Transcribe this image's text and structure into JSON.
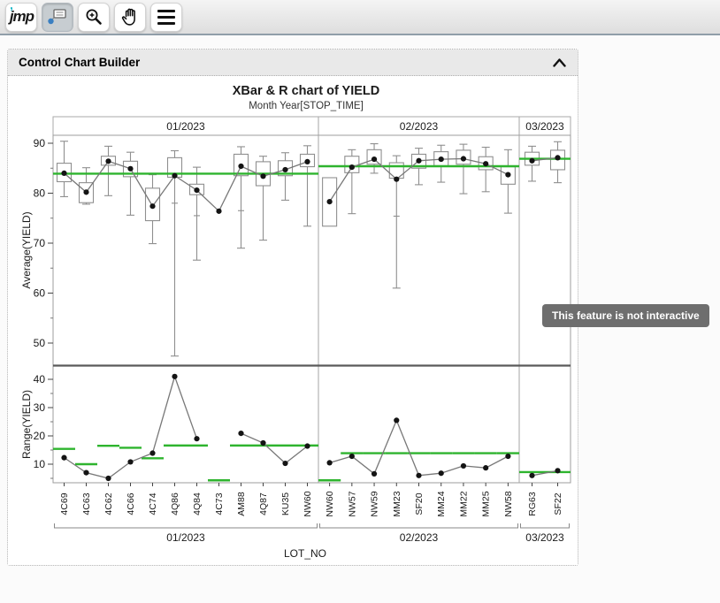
{
  "toolbar": {
    "logo_text": "jmp",
    "buttons": [
      {
        "name": "jmp-logo-button",
        "icon": "jmp-logo",
        "pressed": false
      },
      {
        "name": "annotation-tool-button",
        "icon": "callout-icon",
        "pressed": true
      },
      {
        "name": "zoom-tool-button",
        "icon": "magnifier-icon",
        "pressed": false
      },
      {
        "name": "grab-tool-button",
        "icon": "hand-icon",
        "pressed": false
      },
      {
        "name": "menu-button",
        "icon": "hamburger-icon",
        "pressed": false
      }
    ]
  },
  "panel": {
    "title": "Control Chart Builder",
    "collapse_icon": "chevron-up-icon"
  },
  "tooltip": {
    "text": "This feature is not interactive"
  },
  "chart_data": {
    "type": "control-chart-xbar-r",
    "title": "XBar & R chart of YIELD",
    "subtitle": "Month Year[STOP_TIME]",
    "xlabel": "LOT_NO",
    "top_axis": {
      "ylabel": "Average(YIELD)",
      "yticks": [
        50,
        60,
        70,
        80,
        90
      ],
      "minor_ticks": [
        55,
        65,
        75,
        85
      ],
      "ylim": [
        45.6,
        91.6
      ]
    },
    "bottom_axis": {
      "ylabel": "Range(YIELD)",
      "yticks": [
        10,
        20,
        30,
        40
      ],
      "minor_ticks": [
        5,
        15,
        25,
        35
      ],
      "ylim": [
        3.4,
        44.7
      ]
    },
    "colors": {
      "center_line": "#2eb42e",
      "box_stroke": "#8f8f8f",
      "series_line": "#787878",
      "point": "#141414",
      "divider": "#5a5a5a",
      "frame": "#9c9c9c"
    },
    "groups": [
      {
        "label": "01/2023",
        "lots": [
          "4C69",
          "4C63",
          "4C62",
          "4C66",
          "4C74",
          "4Q86",
          "4Q84",
          "4C73",
          "AM88",
          "4Q87",
          "KU35",
          "NW60"
        ],
        "xbar": {
          "means": [
            84.0,
            80.2,
            86.4,
            84.9,
            77.4,
            83.5,
            80.6,
            76.4,
            85.4,
            83.4,
            84.7,
            86.3
          ],
          "box_q1": [
            82.3,
            78.1,
            85.6,
            83.3,
            74.5,
            83.2,
            79.7,
            null,
            83.5,
            81.5,
            83.5,
            85.3
          ],
          "box_q3": [
            86.0,
            82.1,
            87.4,
            86.4,
            81.0,
            87.1,
            81.8,
            null,
            87.8,
            86.3,
            86.5,
            87.8
          ],
          "whisker_lo": [
            79.3,
            77.8,
            79.5,
            75.6,
            69.9,
            47.4,
            66.6,
            null,
            69.0,
            70.6,
            78.6,
            73.4
          ],
          "whisker_hi": [
            90.4,
            85.1,
            89.4,
            88.2,
            83.7,
            88.5,
            85.2,
            null,
            89.3,
            87.4,
            88.1,
            89.5
          ],
          "mid_ticks": [
            null,
            null,
            null,
            null,
            null,
            78.0,
            75.5,
            null,
            76.5,
            null,
            null,
            null
          ],
          "center_line": 83.9
        },
        "range": {
          "values": [
            12.3,
            7.0,
            5.0,
            10.8,
            13.9,
            41.0,
            19.0,
            null,
            20.9,
            17.5,
            10.3,
            16.4
          ],
          "center_segments": [
            15.4,
            10.0,
            16.5,
            15.8,
            12.1,
            16.6,
            16.6,
            4.3,
            16.6,
            16.6,
            16.6,
            16.6
          ]
        }
      },
      {
        "label": "02/2023",
        "lots": [
          "NW60",
          "NW57",
          "NW59",
          "MM23",
          "SF20",
          "MM24",
          "MM22",
          "MM25",
          "NW58"
        ],
        "xbar": {
          "means": [
            78.3,
            85.2,
            86.8,
            82.8,
            86.5,
            86.8,
            86.9,
            85.9,
            83.7
          ],
          "box_q1": [
            73.4,
            84.1,
            85.8,
            83.0,
            85.0,
            85.5,
            85.8,
            84.7,
            81.8
          ],
          "box_q3": [
            83.1,
            87.4,
            88.7,
            86.1,
            87.8,
            88.3,
            88.6,
            87.3,
            85.3
          ],
          "whisker_lo": [
            null,
            75.9,
            84.0,
            61.0,
            81.7,
            82.2,
            79.9,
            80.3,
            76.0
          ],
          "whisker_hi": [
            null,
            88.7,
            89.9,
            87.5,
            89.0,
            89.6,
            89.8,
            89.2,
            88.7
          ],
          "mid_ticks": [
            null,
            null,
            null,
            75.4,
            null,
            null,
            null,
            null,
            null
          ],
          "center_line": 85.4
        },
        "range": {
          "values": [
            10.5,
            12.8,
            6.6,
            25.5,
            6.0,
            6.8,
            9.4,
            8.7,
            12.8
          ],
          "center_segments": [
            4.3,
            13.9,
            13.9,
            13.9,
            13.9,
            13.9,
            13.9,
            13.9,
            13.9
          ]
        }
      },
      {
        "label": "03/2023",
        "lots": [
          "RG63",
          "SF22"
        ],
        "xbar": {
          "means": [
            86.5,
            87.1
          ],
          "box_q1": [
            85.6,
            84.7
          ],
          "box_q3": [
            88.2,
            88.6
          ],
          "whisker_lo": [
            82.4,
            82.1
          ],
          "whisker_hi": [
            89.4,
            90.3
          ],
          "mid_ticks": [
            null,
            null
          ],
          "center_line": 86.9
        },
        "range": {
          "values": [
            6.0,
            7.7
          ],
          "center_segments": [
            7.2,
            7.2
          ]
        }
      }
    ]
  }
}
